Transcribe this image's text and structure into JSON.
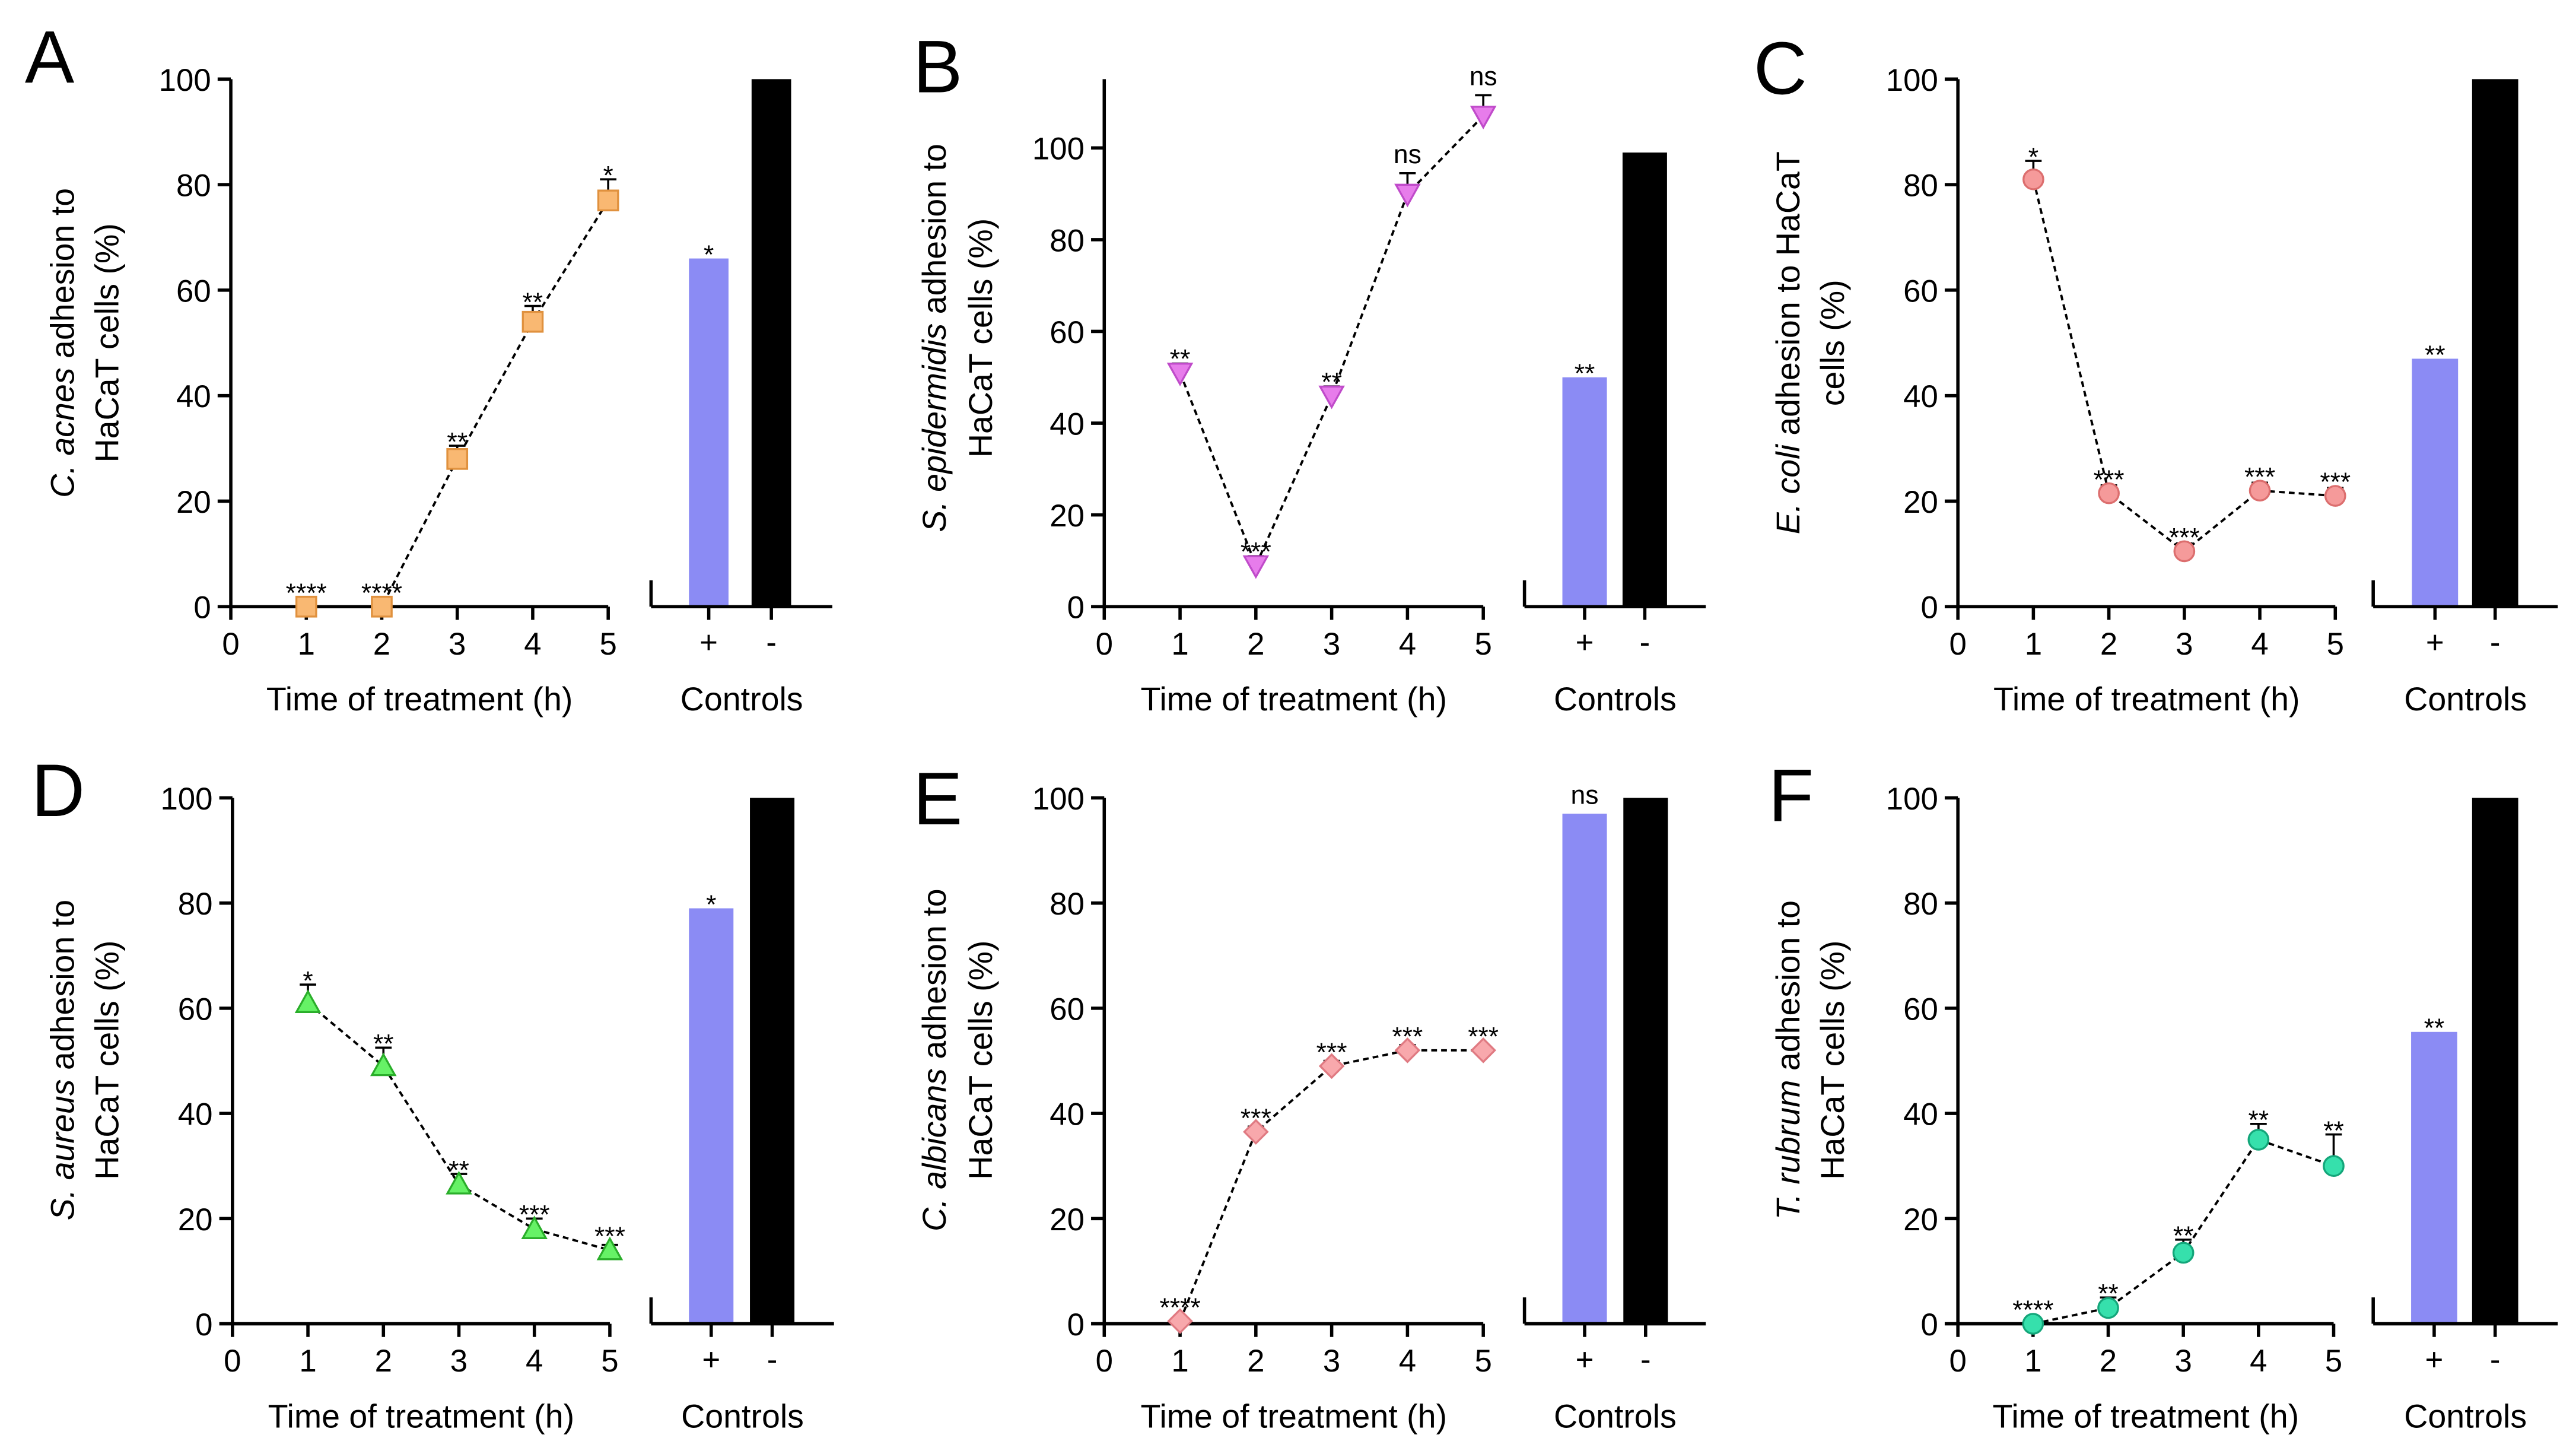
{
  "chart_data": [
    {
      "panel_label": "A",
      "type": "line",
      "ylabel": {
        "italic": "C. acnes",
        "rest": " adhesion to",
        "line2": "HaCaT cells (%)"
      },
      "xlabel": "Time of treatment (h)",
      "xlim": [
        0,
        5
      ],
      "ylim": [
        0,
        100
      ],
      "x_ticks": [
        "0",
        "1",
        "2",
        "3",
        "4",
        "5"
      ],
      "y_ticks": [
        "0",
        "20",
        "40",
        "60",
        "80",
        "100"
      ],
      "grid": false,
      "series": [
        {
          "x": [
            1,
            2,
            3,
            4,
            5
          ],
          "y": [
            0,
            0,
            28,
            54,
            77
          ],
          "error_upper": [
            0,
            0,
            2.5,
            3,
            4
          ],
          "significance": [
            "****",
            "****",
            "**",
            "**",
            "*"
          ],
          "marker": "square",
          "color": "#F9B872",
          "edge_color": "#E0913E"
        }
      ],
      "controls": {
        "type": "bar",
        "xlabel": "Controls",
        "categories": [
          "+",
          "-"
        ],
        "values": [
          66,
          100
        ],
        "significance": [
          "*",
          null
        ],
        "colors": [
          "#8B8BF4",
          "#000000"
        ]
      }
    },
    {
      "panel_label": "B",
      "type": "line",
      "ylabel": {
        "italic": "S. epidermidis",
        "rest": " adhesion to",
        "line2": "HaCaT cells (%)"
      },
      "xlabel": "Time of treatment (h)",
      "xlim": [
        0,
        5
      ],
      "ylim": [
        0,
        115
      ],
      "x_ticks": [
        "0",
        "1",
        "2",
        "3",
        "4",
        "5"
      ],
      "y_ticks": [
        "0",
        "20",
        "40",
        "60",
        "80",
        "100"
      ],
      "grid": false,
      "series": [
        {
          "x": [
            1,
            2,
            3,
            4,
            5
          ],
          "y": [
            51,
            9,
            46,
            90,
            107
          ],
          "error_upper": [
            2,
            2,
            2,
            4.5,
            4.5
          ],
          "significance": [
            "**",
            "***",
            "**",
            "ns",
            "ns"
          ],
          "marker": "triangle-down",
          "color": "#E77CEB",
          "edge_color": "#C04BCA"
        }
      ],
      "controls": {
        "type": "bar",
        "xlabel": "Controls",
        "categories": [
          "+",
          "-"
        ],
        "values": [
          50,
          99
        ],
        "significance": [
          "**",
          null
        ],
        "colors": [
          "#8B8BF4",
          "#000000"
        ]
      }
    },
    {
      "panel_label": "C",
      "type": "line",
      "ylabel": {
        "italic": "E. coli",
        "rest": " adhesion to HaCaT",
        "line2": "cells (%)"
      },
      "xlabel": "Time of treatment (h)",
      "xlim": [
        0,
        5
      ],
      "ylim": [
        0,
        100
      ],
      "x_ticks": [
        "0",
        "1",
        "2",
        "3",
        "4",
        "5"
      ],
      "y_ticks": [
        "0",
        "20",
        "40",
        "60",
        "80",
        "100"
      ],
      "grid": false,
      "series": [
        {
          "x": [
            1,
            2,
            3,
            4,
            5
          ],
          "y": [
            81,
            21.5,
            10.5,
            22,
            21
          ],
          "error_upper": [
            3.5,
            1.5,
            1.5,
            1.5,
            1.5
          ],
          "significance": [
            "*",
            "***",
            "***",
            "***",
            "***"
          ],
          "marker": "circle",
          "color": "#F59A9A",
          "edge_color": "#DC6E6E"
        }
      ],
      "controls": {
        "type": "bar",
        "xlabel": "Controls",
        "categories": [
          "+",
          "-"
        ],
        "values": [
          47,
          100
        ],
        "significance": [
          "**",
          null
        ],
        "colors": [
          "#8B8BF4",
          "#000000"
        ]
      }
    },
    {
      "panel_label": "D",
      "type": "line",
      "ylabel": {
        "italic": "S. aureus",
        "rest": " adhesion to",
        "line2": "HaCaT cells (%)"
      },
      "xlabel": "Time of treatment (h)",
      "xlim": [
        0,
        5
      ],
      "ylim": [
        0,
        100
      ],
      "x_ticks": [
        "0",
        "1",
        "2",
        "3",
        "4",
        "5"
      ],
      "y_ticks": [
        "0",
        "20",
        "40",
        "60",
        "80",
        "100"
      ],
      "grid": false,
      "series": [
        {
          "x": [
            1,
            2,
            3,
            4,
            5
          ],
          "y": [
            61,
            49,
            26.5,
            18,
            14
          ],
          "error_upper": [
            3.5,
            3.5,
            2,
            2,
            1
          ],
          "significance": [
            "*",
            "**",
            "**",
            "***",
            "***"
          ],
          "marker": "triangle-up",
          "color": "#66F266",
          "edge_color": "#2AAE2A"
        }
      ],
      "controls": {
        "type": "bar",
        "xlabel": "Controls",
        "categories": [
          "+",
          "-"
        ],
        "values": [
          79,
          100
        ],
        "significance": [
          "*",
          null
        ],
        "colors": [
          "#8B8BF4",
          "#000000"
        ]
      }
    },
    {
      "panel_label": "E",
      "type": "line",
      "ylabel": {
        "italic": "C. albicans",
        "rest": " adhesion to",
        "line2": "HaCaT cells (%)"
      },
      "xlabel": "Time of treatment (h)",
      "xlim": [
        0,
        5
      ],
      "ylim": [
        0,
        100
      ],
      "x_ticks": [
        "0",
        "1",
        "2",
        "3",
        "4",
        "5"
      ],
      "y_ticks": [
        "0",
        "20",
        "40",
        "60",
        "80",
        "100"
      ],
      "grid": false,
      "series": [
        {
          "x": [
            1,
            2,
            3,
            4,
            5
          ],
          "y": [
            0.5,
            36.5,
            49,
            52,
            52
          ],
          "error_upper": [
            0.5,
            1,
            1,
            1,
            0.5
          ],
          "significance": [
            "****",
            "***",
            "***",
            "***",
            "***"
          ],
          "marker": "diamond",
          "color": "#F8A8AC",
          "edge_color": "#E07A82"
        }
      ],
      "controls": {
        "type": "bar",
        "xlabel": "Controls",
        "categories": [
          "+",
          "-"
        ],
        "values": [
          97,
          100
        ],
        "significance": [
          "ns",
          null
        ],
        "colors": [
          "#8B8BF4",
          "#000000"
        ]
      }
    },
    {
      "panel_label": "F",
      "type": "line",
      "ylabel": {
        "italic": "T. rubrum",
        "rest": " adhesion to",
        "line2": "HaCaT cells (%)"
      },
      "xlabel": "Time of treatment (h)",
      "xlim": [
        0,
        5
      ],
      "ylim": [
        0,
        100
      ],
      "x_ticks": [
        "0",
        "1",
        "2",
        "3",
        "4",
        "5"
      ],
      "y_ticks": [
        "0",
        "20",
        "40",
        "60",
        "80",
        "100"
      ],
      "grid": false,
      "series": [
        {
          "x": [
            1,
            2,
            3,
            4,
            5
          ],
          "y": [
            0,
            3,
            13.5,
            35,
            30
          ],
          "error_upper": [
            0,
            2,
            2.5,
            3,
            6
          ],
          "significance": [
            "****",
            "**",
            "**",
            "**",
            "**"
          ],
          "marker": "circle",
          "color": "#36E0AC",
          "edge_color": "#14A67A"
        }
      ],
      "controls": {
        "type": "bar",
        "xlabel": "Controls",
        "categories": [
          "+",
          "-"
        ],
        "values": [
          55.5,
          100
        ],
        "significance": [
          "**",
          null
        ],
        "colors": [
          "#8B8BF4",
          "#000000"
        ]
      }
    }
  ]
}
